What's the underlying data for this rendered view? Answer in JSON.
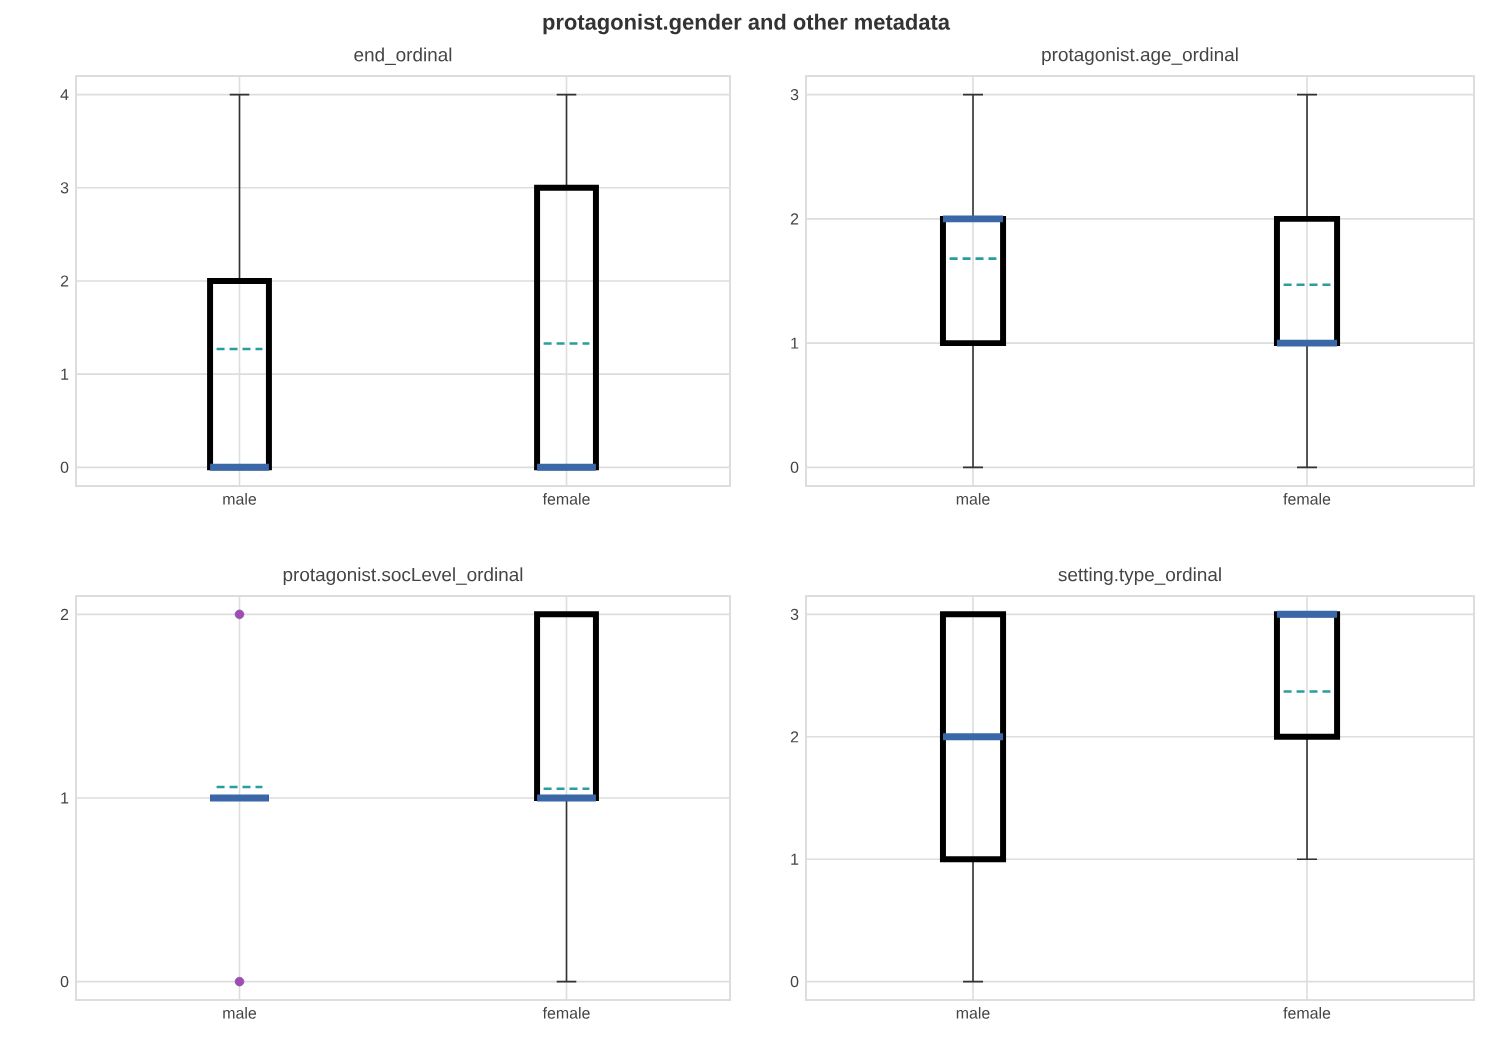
{
  "chart_data": [
    {
      "type": "box",
      "title": "end_ordinal",
      "annotations": [
        "protagonist.gender and other metadata"
      ],
      "categories": [
        "male",
        "female"
      ],
      "color": "#000000",
      "grid": true,
      "ylim": [
        -0.2,
        4.2
      ],
      "yticks": [
        0,
        1,
        2,
        3,
        4
      ],
      "boxes": [
        {
          "low": 0,
          "q1": 0,
          "median": 0,
          "q3": 2,
          "high": 4,
          "mean": 1.27
        },
        {
          "low": 0,
          "q1": 0,
          "median": 0,
          "q3": 3,
          "high": 4,
          "mean": 1.33
        }
      ]
    },
    {
      "type": "box",
      "title": "protagonist.age_ordinal",
      "categories": [
        "male",
        "female"
      ],
      "color": "#000000",
      "grid": true,
      "ylim": [
        -0.15,
        3.15
      ],
      "yticks": [
        0,
        1,
        2,
        3
      ],
      "boxes": [
        {
          "low": 0,
          "q1": 1,
          "median": 2,
          "q3": 2,
          "high": 3,
          "mean": 1.68
        },
        {
          "low": 0,
          "q1": 1,
          "median": 1,
          "q3": 2,
          "high": 3,
          "mean": 1.47
        }
      ]
    },
    {
      "type": "box",
      "title": "protagonist.socLevel_ordinal",
      "categories": [
        "male",
        "female"
      ],
      "color": "#000000",
      "grid": true,
      "ylim": [
        -0.1,
        2.1
      ],
      "yticks": [
        0,
        1,
        2
      ],
      "boxes": [
        {
          "low": 1,
          "q1": 1,
          "median": 1,
          "q3": 1,
          "high": 1,
          "mean": 1.06,
          "outliers": [
            0,
            2
          ]
        },
        {
          "low": 0,
          "q1": 1,
          "median": 1,
          "q3": 2,
          "high": 2,
          "mean": 1.05
        }
      ]
    },
    {
      "type": "box",
      "title": "setting.type_ordinal",
      "categories": [
        "male",
        "female"
      ],
      "color": "#000000",
      "grid": true,
      "ylim": [
        -0.15,
        3.15
      ],
      "yticks": [
        0,
        1,
        2,
        3
      ],
      "boxes": [
        {
          "low": 0,
          "q1": 1,
          "median": 2,
          "q3": 3,
          "high": 3
        },
        {
          "low": 1,
          "q1": 2,
          "median": 3,
          "q3": 3,
          "high": 3,
          "mean": 2.37
        }
      ]
    }
  ]
}
